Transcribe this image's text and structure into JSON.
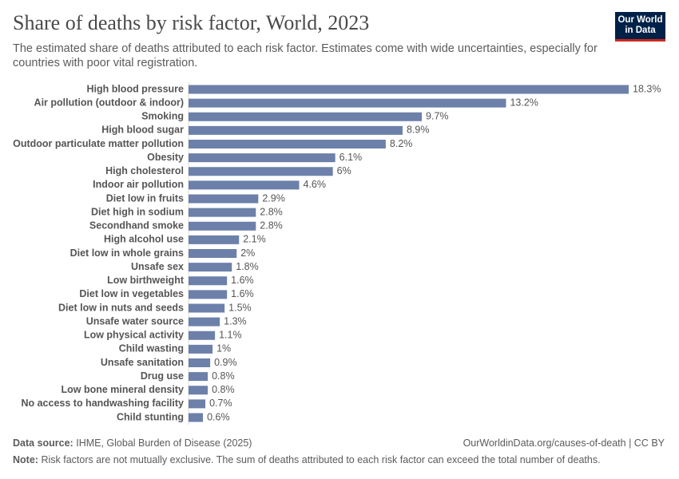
{
  "chart_data": {
    "type": "bar",
    "orientation": "horizontal",
    "title": "Share of deaths by risk factor, World, 2023",
    "subtitle": "The estimated share of deaths attributed to each risk factor. Estimates come with wide uncertainties, especially for countries with poor vital registration.",
    "logo": [
      "Our World",
      "in Data"
    ],
    "source_label": "Data source:",
    "source": "IHME, Global Burden of Disease (2025)",
    "url": "OurWorldinData.org/causes-of-death | CC BY",
    "note_label": "Note:",
    "note": "Risk factors are not mutually exclusive. The sum of deaths attributed to each risk factor can exceed the total number of deaths.",
    "color": "#6c80aa",
    "categories": [
      "High blood pressure",
      "Air pollution (outdoor & indoor)",
      "Smoking",
      "High blood sugar",
      "Outdoor particulate matter pollution",
      "Obesity",
      "High cholesterol",
      "Indoor air pollution",
      "Diet low in fruits",
      "Diet high in sodium",
      "Secondhand smoke",
      "High alcohol use",
      "Diet low in whole grains",
      "Unsafe sex",
      "Low birthweight",
      "Diet low in vegetables",
      "Diet low in nuts and seeds",
      "Unsafe water source",
      "Low physical activity",
      "Child wasting",
      "Unsafe sanitation",
      "Drug use",
      "Low bone mineral density",
      "No access to handwashing facility",
      "Child stunting"
    ],
    "values": [
      18.3,
      13.2,
      9.7,
      8.9,
      8.2,
      6.1,
      6,
      4.6,
      2.9,
      2.8,
      2.8,
      2.1,
      2,
      1.8,
      1.6,
      1.6,
      1.5,
      1.3,
      1.1,
      1,
      0.9,
      0.8,
      0.8,
      0.7,
      0.6
    ],
    "value_labels": [
      "18.3%",
      "13.2%",
      "9.7%",
      "8.9%",
      "8.2%",
      "6.1%",
      "6%",
      "4.6%",
      "2.9%",
      "2.8%",
      "2.8%",
      "2.1%",
      "2%",
      "1.8%",
      "1.6%",
      "1.6%",
      "1.5%",
      "1.3%",
      "1.1%",
      "1%",
      "0.9%",
      "0.8%",
      "0.8%",
      "0.7%",
      "0.6%"
    ]
  }
}
